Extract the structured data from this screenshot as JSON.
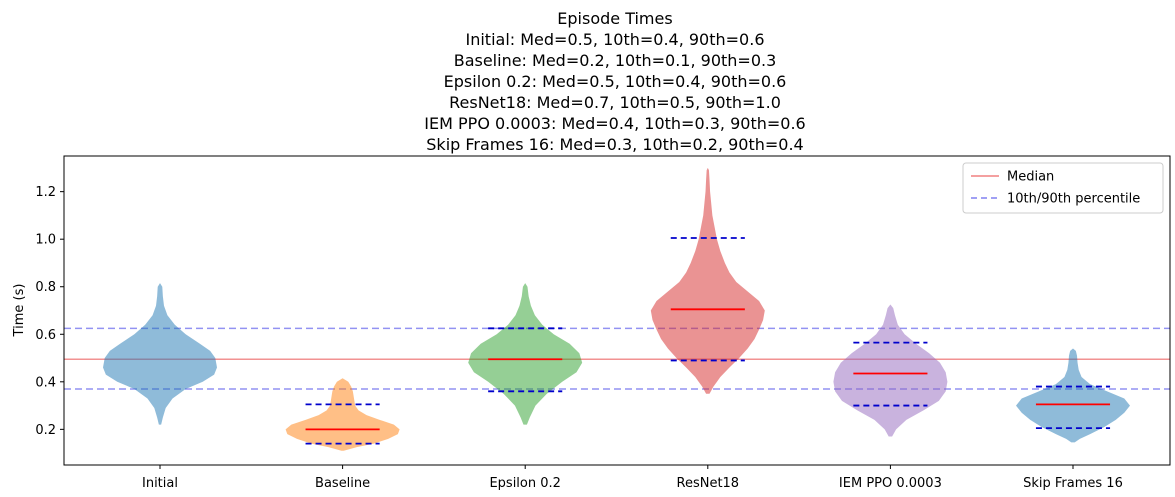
{
  "chart_data": {
    "type": "violin",
    "title_lines": [
      "Episode Times",
      "Initial: Med=0.5, 10th=0.4, 90th=0.6",
      "Baseline: Med=0.2, 10th=0.1, 90th=0.3",
      "Epsilon 0.2: Med=0.5, 10th=0.4, 90th=0.6",
      "ResNet18: Med=0.7, 10th=0.5, 90th=1.0",
      "IEM PPO 0.0003: Med=0.4, 10th=0.3, 90th=0.6",
      "Skip Frames 16: Med=0.3, 10th=0.2, 90th=0.4"
    ],
    "xlabel": "",
    "ylabel": "Time (s)",
    "ylim": [
      0.05,
      1.35
    ],
    "yticks": [
      0.2,
      0.4,
      0.6,
      0.8,
      1.0,
      1.2
    ],
    "ytick_labels": [
      "0.2",
      "0.4",
      "0.6",
      "0.8",
      "1.0",
      "1.2"
    ],
    "grid": false,
    "legend_position": "upper right",
    "categories": [
      "Initial",
      "Baseline",
      "Epsilon 0.2",
      "ResNet18",
      "IEM PPO 0.0003",
      "Skip Frames 16"
    ],
    "series": [
      {
        "category": "Initial",
        "color": "#1f77b4",
        "alpha": 0.5,
        "median": 0.495,
        "p10": null,
        "p90": null,
        "profile": [
          [
            0.22,
            0.02
          ],
          [
            0.25,
            0.05
          ],
          [
            0.29,
            0.1
          ],
          [
            0.33,
            0.22
          ],
          [
            0.37,
            0.45
          ],
          [
            0.4,
            0.75
          ],
          [
            0.43,
            0.95
          ],
          [
            0.46,
            1.0
          ],
          [
            0.5,
            0.97
          ],
          [
            0.53,
            0.88
          ],
          [
            0.56,
            0.7
          ],
          [
            0.6,
            0.45
          ],
          [
            0.64,
            0.26
          ],
          [
            0.68,
            0.13
          ],
          [
            0.72,
            0.07
          ],
          [
            0.76,
            0.05
          ],
          [
            0.8,
            0.04
          ],
          [
            0.815,
            0.0
          ]
        ]
      },
      {
        "category": "Baseline",
        "color": "#ff7f0e",
        "alpha": 0.5,
        "median": 0.2,
        "p10": 0.14,
        "p90": 0.305,
        "profile": [
          [
            0.11,
            0.02
          ],
          [
            0.125,
            0.25
          ],
          [
            0.14,
            0.55
          ],
          [
            0.16,
            0.8
          ],
          [
            0.18,
            0.97
          ],
          [
            0.2,
            1.0
          ],
          [
            0.22,
            0.9
          ],
          [
            0.24,
            0.65
          ],
          [
            0.26,
            0.42
          ],
          [
            0.28,
            0.28
          ],
          [
            0.3,
            0.22
          ],
          [
            0.33,
            0.2
          ],
          [
            0.36,
            0.18
          ],
          [
            0.38,
            0.15
          ],
          [
            0.4,
            0.1
          ],
          [
            0.415,
            0.0
          ]
        ]
      },
      {
        "category": "Epsilon 0.2",
        "color": "#2ca02c",
        "alpha": 0.5,
        "median": 0.495,
        "p10": 0.36,
        "p90": 0.625,
        "profile": [
          [
            0.22,
            0.03
          ],
          [
            0.25,
            0.08
          ],
          [
            0.3,
            0.18
          ],
          [
            0.35,
            0.38
          ],
          [
            0.4,
            0.65
          ],
          [
            0.44,
            0.9
          ],
          [
            0.48,
            1.0
          ],
          [
            0.52,
            0.95
          ],
          [
            0.56,
            0.78
          ],
          [
            0.6,
            0.5
          ],
          [
            0.64,
            0.3
          ],
          [
            0.68,
            0.17
          ],
          [
            0.72,
            0.1
          ],
          [
            0.76,
            0.06
          ],
          [
            0.8,
            0.04
          ],
          [
            0.815,
            0.0
          ]
        ]
      },
      {
        "category": "ResNet18",
        "color": "#d62728",
        "alpha": 0.5,
        "median": 0.705,
        "p10": 0.49,
        "p90": 1.005,
        "profile": [
          [
            0.35,
            0.03
          ],
          [
            0.38,
            0.1
          ],
          [
            0.42,
            0.22
          ],
          [
            0.46,
            0.38
          ],
          [
            0.5,
            0.55
          ],
          [
            0.54,
            0.7
          ],
          [
            0.58,
            0.82
          ],
          [
            0.62,
            0.9
          ],
          [
            0.66,
            0.97
          ],
          [
            0.7,
            1.0
          ],
          [
            0.74,
            0.9
          ],
          [
            0.78,
            0.7
          ],
          [
            0.82,
            0.5
          ],
          [
            0.86,
            0.38
          ],
          [
            0.9,
            0.3
          ],
          [
            0.95,
            0.22
          ],
          [
            1.0,
            0.16
          ],
          [
            1.05,
            0.12
          ],
          [
            1.1,
            0.08
          ],
          [
            1.15,
            0.06
          ],
          [
            1.2,
            0.04
          ],
          [
            1.25,
            0.03
          ],
          [
            1.29,
            0.02
          ],
          [
            1.3,
            0.0
          ]
        ]
      },
      {
        "category": "IEM PPO 0.0003",
        "color": "#9467bd",
        "alpha": 0.5,
        "median": 0.435,
        "p10": 0.3,
        "p90": 0.565,
        "profile": [
          [
            0.17,
            0.03
          ],
          [
            0.2,
            0.1
          ],
          [
            0.24,
            0.28
          ],
          [
            0.28,
            0.58
          ],
          [
            0.32,
            0.85
          ],
          [
            0.36,
            0.97
          ],
          [
            0.4,
            1.0
          ],
          [
            0.44,
            0.97
          ],
          [
            0.48,
            0.87
          ],
          [
            0.52,
            0.68
          ],
          [
            0.56,
            0.45
          ],
          [
            0.6,
            0.25
          ],
          [
            0.64,
            0.13
          ],
          [
            0.68,
            0.08
          ],
          [
            0.71,
            0.05
          ],
          [
            0.725,
            0.0
          ]
        ]
      },
      {
        "category": "Skip Frames 16",
        "color": "#1f77b4",
        "alpha": 0.5,
        "median": 0.305,
        "p10": 0.205,
        "p90": 0.38,
        "profile": [
          [
            0.145,
            0.03
          ],
          [
            0.16,
            0.12
          ],
          [
            0.18,
            0.3
          ],
          [
            0.21,
            0.55
          ],
          [
            0.24,
            0.75
          ],
          [
            0.27,
            0.9
          ],
          [
            0.3,
            1.0
          ],
          [
            0.33,
            0.9
          ],
          [
            0.36,
            0.6
          ],
          [
            0.39,
            0.3
          ],
          [
            0.42,
            0.15
          ],
          [
            0.45,
            0.1
          ],
          [
            0.48,
            0.08
          ],
          [
            0.51,
            0.07
          ],
          [
            0.53,
            0.05
          ],
          [
            0.54,
            0.0
          ]
        ]
      }
    ],
    "reference_lines": [
      {
        "label": "Median",
        "value": 0.495,
        "color": "#f08080",
        "style": "solid"
      },
      {
        "label": "10th/90th percentile",
        "value": 0.37,
        "color": "#8080f0",
        "style": "dashed"
      },
      {
        "label": "10th/90th percentile",
        "value": 0.625,
        "color": "#8080f0",
        "style": "dashed"
      }
    ],
    "legend": [
      {
        "label": "Median",
        "color": "#f08080",
        "style": "solid"
      },
      {
        "label": "10th/90th percentile",
        "color": "#8080f0",
        "style": "dashed"
      }
    ],
    "median_marker_color": "#ff0000",
    "percentile_marker_color": "#0000cc"
  }
}
